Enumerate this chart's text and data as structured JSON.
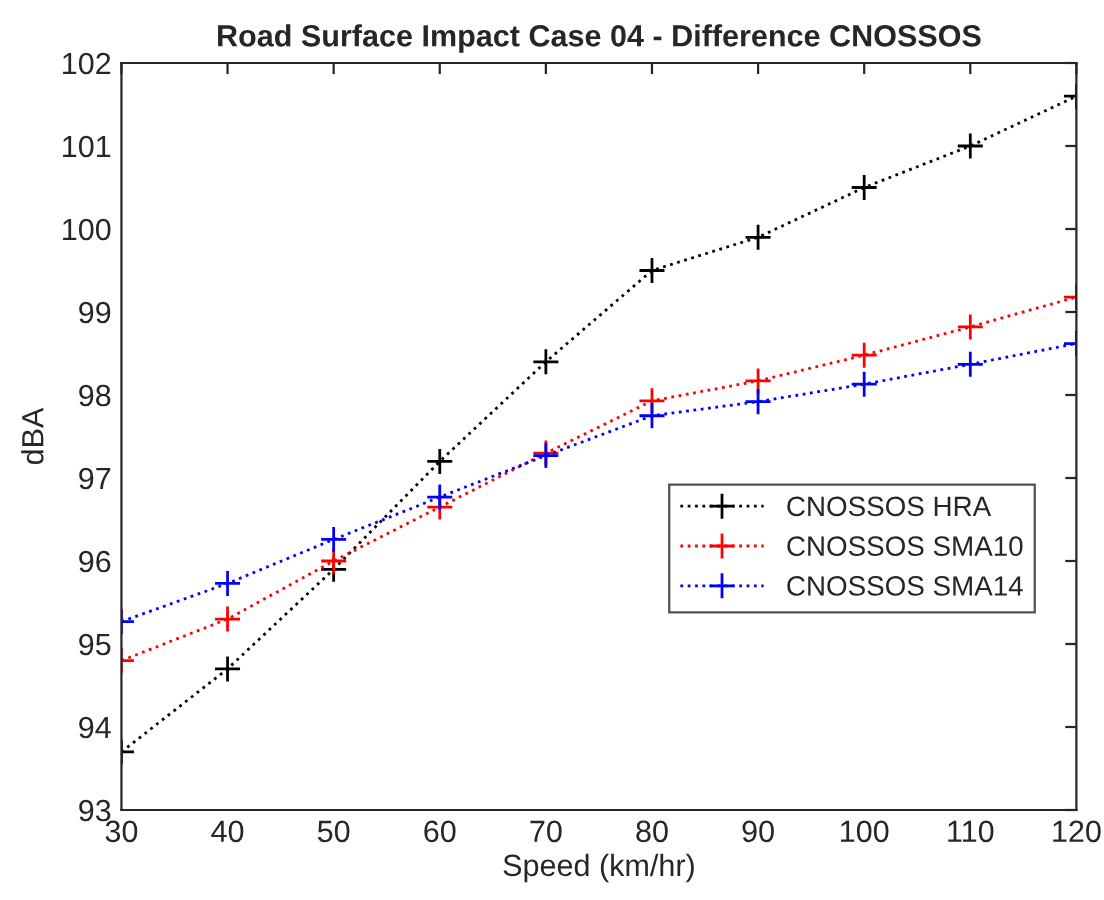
{
  "chart_data": {
    "type": "line",
    "title": "Road Surface Impact Case 04 - Difference CNOSSOS",
    "xlabel": "Speed (km/hr)",
    "ylabel": "dBA",
    "x": [
      30,
      40,
      50,
      60,
      70,
      80,
      90,
      100,
      110,
      120
    ],
    "series": [
      {
        "name": "CNOSSOS HRA",
        "color": "#000000",
        "values": [
          93.7,
          94.7,
          95.9,
          97.2,
          98.4,
          99.5,
          99.9,
          100.5,
          101.0,
          101.6
        ]
      },
      {
        "name": "CNOSSOS SMA10",
        "color": "#ff0000",
        "values": [
          94.8,
          95.3,
          96.0,
          96.65,
          97.3,
          97.93,
          98.17,
          98.48,
          98.82,
          99.18
        ]
      },
      {
        "name": "CNOSSOS SMA14",
        "color": "#0000ff",
        "values": [
          95.27,
          95.73,
          96.26,
          96.77,
          97.27,
          97.75,
          97.92,
          98.13,
          98.37,
          98.62
        ]
      }
    ],
    "xlim": [
      30,
      120
    ],
    "xticks": [
      30,
      40,
      50,
      60,
      70,
      80,
      90,
      100,
      110,
      120
    ],
    "ylim": [
      93,
      102
    ],
    "yticks": [
      93,
      94,
      95,
      96,
      97,
      98,
      99,
      100,
      101,
      102
    ],
    "grid": false,
    "legend": "right",
    "marker": "cross",
    "line_style": "dotted"
  }
}
